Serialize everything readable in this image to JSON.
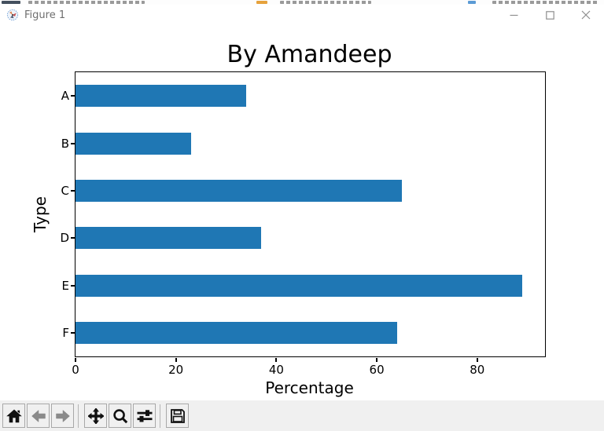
{
  "window": {
    "title": "Figure 1",
    "app_icon": "matplotlib-logo-icon",
    "controls": [
      {
        "name": "minimize-button",
        "icon": "minimize-icon"
      },
      {
        "name": "maximize-button",
        "icon": "maximize-icon"
      },
      {
        "name": "close-button",
        "icon": "close-icon"
      }
    ]
  },
  "chart_data": {
    "type": "bar",
    "orientation": "horizontal",
    "title": "By Amandeep",
    "categories": [
      "A",
      "B",
      "C",
      "D",
      "E",
      "F"
    ],
    "values": [
      34,
      23,
      65,
      37,
      89,
      64
    ],
    "xlabel": "Percentage",
    "ylabel": "Type",
    "x_ticks": [
      0,
      20,
      40,
      60,
      80
    ],
    "xlim": [
      0,
      93.5
    ],
    "bar_color": "#1f77b4",
    "spine_color": "#000000",
    "grid": false,
    "legend": "none"
  },
  "toolbar": {
    "background_color": "#f0f0f0",
    "buttons": [
      {
        "id": "home",
        "icon": "home-icon"
      },
      {
        "id": "back",
        "icon": "arrow-left-icon"
      },
      {
        "id": "forward",
        "icon": "arrow-right-icon"
      },
      {
        "id": "pan",
        "icon": "move-cross-icon"
      },
      {
        "id": "zoom-to-rect",
        "icon": "magnifier-icon"
      },
      {
        "id": "configure-subplots",
        "icon": "sliders-icon"
      },
      {
        "id": "save",
        "icon": "floppy-disk-icon"
      }
    ]
  }
}
